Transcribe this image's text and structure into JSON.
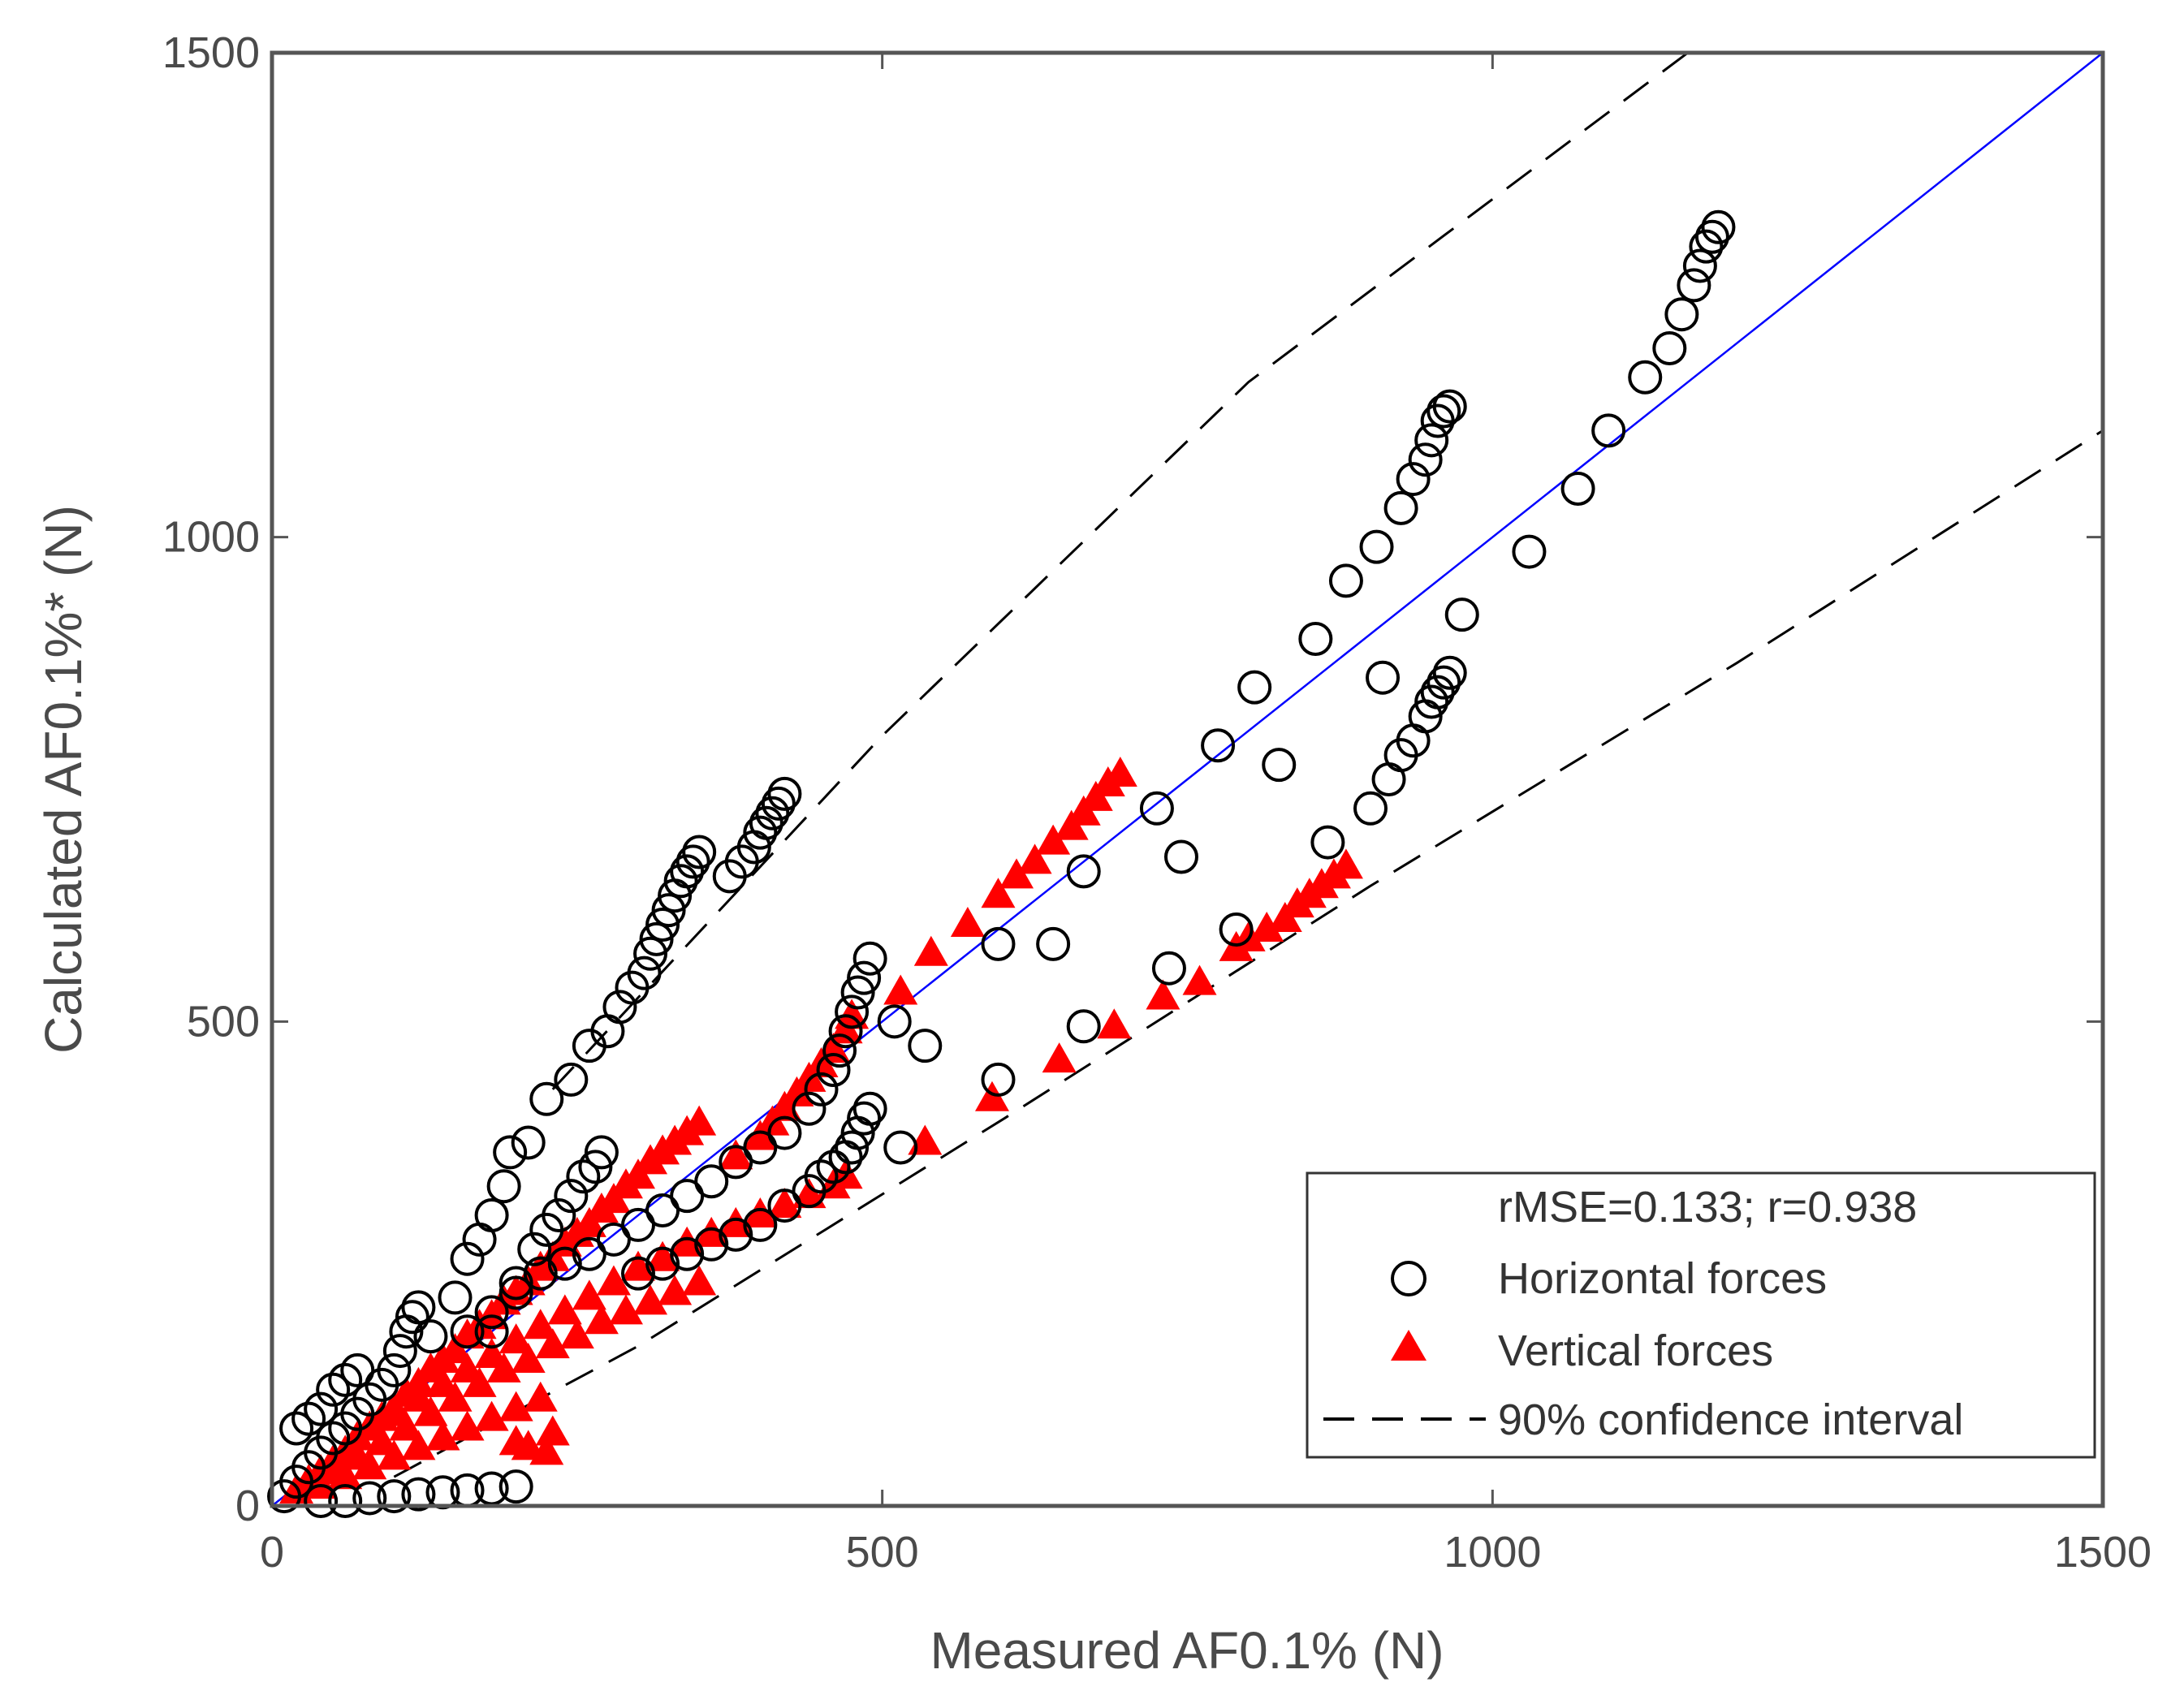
{
  "chart_data": {
    "type": "scatter",
    "xlabel": "Measured AF0.1% (N)",
    "ylabel": "Calculated AF0.1%* (N)",
    "xlim": [
      0,
      1500
    ],
    "ylim": [
      0,
      1500
    ],
    "x_ticks": [
      "0",
      "500",
      "1000",
      "1500"
    ],
    "y_ticks": [
      "0",
      "500",
      "1000",
      "1500"
    ],
    "grid": false,
    "legend_position": "bottom-right",
    "stats_text": "rMSE=0.133; r=0.938",
    "series": [
      {
        "name": "Horizontal forces",
        "marker": "open-circle",
        "color": "#000000",
        "points": [
          [
            10,
            10
          ],
          [
            20,
            25
          ],
          [
            30,
            40
          ],
          [
            40,
            55
          ],
          [
            50,
            70
          ],
          [
            60,
            80
          ],
          [
            70,
            95
          ],
          [
            80,
            110
          ],
          [
            90,
            125
          ],
          [
            100,
            140
          ],
          [
            105,
            160
          ],
          [
            110,
            180
          ],
          [
            115,
            195
          ],
          [
            120,
            205
          ],
          [
            20,
            80
          ],
          [
            30,
            90
          ],
          [
            40,
            100
          ],
          [
            50,
            120
          ],
          [
            60,
            130
          ],
          [
            70,
            140
          ],
          [
            130,
            175
          ],
          [
            150,
            215
          ],
          [
            160,
            255
          ],
          [
            170,
            275
          ],
          [
            180,
            300
          ],
          [
            190,
            330
          ],
          [
            195,
            365
          ],
          [
            210,
            375
          ],
          [
            225,
            420
          ],
          [
            245,
            440
          ],
          [
            260,
            475
          ],
          [
            275,
            490
          ],
          [
            285,
            515
          ],
          [
            295,
            535
          ],
          [
            305,
            550
          ],
          [
            310,
            570
          ],
          [
            315,
            585
          ],
          [
            320,
            600
          ],
          [
            325,
            615
          ],
          [
            330,
            630
          ],
          [
            335,
            645
          ],
          [
            340,
            655
          ],
          [
            345,
            665
          ],
          [
            350,
            675
          ],
          [
            375,
            650
          ],
          [
            385,
            665
          ],
          [
            395,
            680
          ],
          [
            400,
            695
          ],
          [
            405,
            705
          ],
          [
            410,
            715
          ],
          [
            415,
            725
          ],
          [
            420,
            735
          ],
          [
            180,
            180
          ],
          [
            200,
            230
          ],
          [
            215,
            265
          ],
          [
            225,
            285
          ],
          [
            235,
            300
          ],
          [
            245,
            320
          ],
          [
            255,
            340
          ],
          [
            265,
            350
          ],
          [
            270,
            365
          ],
          [
            40,
            5
          ],
          [
            60,
            5
          ],
          [
            80,
            8
          ],
          [
            100,
            10
          ],
          [
            120,
            12
          ],
          [
            140,
            14
          ],
          [
            160,
            16
          ],
          [
            180,
            18
          ],
          [
            200,
            20
          ],
          [
            160,
            180
          ],
          [
            180,
            200
          ],
          [
            200,
            220
          ],
          [
            220,
            240
          ],
          [
            240,
            250
          ],
          [
            260,
            260
          ],
          [
            280,
            275
          ],
          [
            300,
            290
          ],
          [
            320,
            305
          ],
          [
            340,
            320
          ],
          [
            360,
            335
          ],
          [
            380,
            355
          ],
          [
            400,
            370
          ],
          [
            420,
            385
          ],
          [
            440,
            410
          ],
          [
            450,
            430
          ],
          [
            460,
            450
          ],
          [
            465,
            470
          ],
          [
            470,
            490
          ],
          [
            475,
            510
          ],
          [
            480,
            530
          ],
          [
            485,
            545
          ],
          [
            490,
            565
          ],
          [
            300,
            240
          ],
          [
            320,
            250
          ],
          [
            340,
            260
          ],
          [
            360,
            270
          ],
          [
            380,
            280
          ],
          [
            400,
            290
          ],
          [
            420,
            310
          ],
          [
            440,
            325
          ],
          [
            450,
            340
          ],
          [
            460,
            350
          ],
          [
            470,
            360
          ],
          [
            475,
            370
          ],
          [
            480,
            385
          ],
          [
            485,
            400
          ],
          [
            490,
            410
          ],
          [
            510,
            500
          ],
          [
            515,
            370
          ],
          [
            535,
            475
          ],
          [
            595,
            440
          ],
          [
            595,
            580
          ],
          [
            640,
            580
          ],
          [
            665,
            655
          ],
          [
            665,
            495
          ],
          [
            725,
            720
          ],
          [
            735,
            555
          ],
          [
            745,
            670
          ],
          [
            775,
            785
          ],
          [
            790,
            595
          ],
          [
            805,
            845
          ],
          [
            825,
            765
          ],
          [
            855,
            895
          ],
          [
            865,
            685
          ],
          [
            880,
            955
          ],
          [
            900,
            720
          ],
          [
            905,
            990
          ],
          [
            910,
            855
          ],
          [
            915,
            750
          ],
          [
            925,
            1030
          ],
          [
            925,
            775
          ],
          [
            935,
            1060
          ],
          [
            935,
            790
          ],
          [
            945,
            1080
          ],
          [
            945,
            815
          ],
          [
            950,
            1100
          ],
          [
            950,
            830
          ],
          [
            955,
            1120
          ],
          [
            955,
            840
          ],
          [
            960,
            1130
          ],
          [
            960,
            850
          ],
          [
            965,
            1135
          ],
          [
            965,
            860
          ],
          [
            975,
            920
          ],
          [
            1030,
            985
          ],
          [
            1070,
            1050
          ],
          [
            1095,
            1110
          ],
          [
            1125,
            1165
          ],
          [
            1145,
            1195
          ],
          [
            1155,
            1230
          ],
          [
            1165,
            1260
          ],
          [
            1170,
            1280
          ],
          [
            1175,
            1300
          ],
          [
            1180,
            1310
          ],
          [
            1185,
            1320
          ]
        ]
      },
      {
        "name": "Vertical forces",
        "marker": "filled-triangle",
        "color": "#ff0000",
        "points": [
          [
            20,
            15
          ],
          [
            30,
            25
          ],
          [
            40,
            35
          ],
          [
            50,
            45
          ],
          [
            60,
            55
          ],
          [
            70,
            70
          ],
          [
            80,
            80
          ],
          [
            90,
            90
          ],
          [
            100,
            100
          ],
          [
            110,
            115
          ],
          [
            120,
            125
          ],
          [
            130,
            140
          ],
          [
            140,
            150
          ],
          [
            150,
            160
          ],
          [
            160,
            175
          ],
          [
            170,
            185
          ],
          [
            180,
            195
          ],
          [
            190,
            210
          ],
          [
            200,
            220
          ],
          [
            210,
            230
          ],
          [
            220,
            245
          ],
          [
            230,
            255
          ],
          [
            240,
            270
          ],
          [
            250,
            280
          ],
          [
            260,
            290
          ],
          [
            270,
            305
          ],
          [
            280,
            315
          ],
          [
            290,
            330
          ],
          [
            300,
            340
          ],
          [
            310,
            355
          ],
          [
            320,
            365
          ],
          [
            330,
            375
          ],
          [
            340,
            385
          ],
          [
            350,
            395
          ],
          [
            50,
            35
          ],
          [
            70,
            50
          ],
          [
            90,
            65
          ],
          [
            110,
            80
          ],
          [
            130,
            95
          ],
          [
            150,
            110
          ],
          [
            170,
            125
          ],
          [
            190,
            140
          ],
          [
            210,
            150
          ],
          [
            230,
            165
          ],
          [
            250,
            175
          ],
          [
            270,
            190
          ],
          [
            290,
            200
          ],
          [
            310,
            210
          ],
          [
            330,
            220
          ],
          [
            350,
            230
          ],
          [
            100,
            95
          ],
          [
            120,
            110
          ],
          [
            140,
            125
          ],
          [
            160,
            140
          ],
          [
            180,
            155
          ],
          [
            200,
            170
          ],
          [
            220,
            185
          ],
          [
            240,
            200
          ],
          [
            260,
            215
          ],
          [
            280,
            230
          ],
          [
            300,
            245
          ],
          [
            320,
            255
          ],
          [
            340,
            270
          ],
          [
            360,
            280
          ],
          [
            380,
            290
          ],
          [
            400,
            300
          ],
          [
            420,
            310
          ],
          [
            440,
            320
          ],
          [
            460,
            330
          ],
          [
            470,
            340
          ],
          [
            40,
            20
          ],
          [
            60,
            30
          ],
          [
            80,
            40
          ],
          [
            100,
            50
          ],
          [
            120,
            60
          ],
          [
            140,
            70
          ],
          [
            160,
            80
          ],
          [
            180,
            90
          ],
          [
            200,
            100
          ],
          [
            220,
            110
          ],
          [
            230,
            75
          ],
          [
            225,
            55
          ],
          [
            210,
            60
          ],
          [
            200,
            65
          ],
          [
            380,
            360
          ],
          [
            400,
            380
          ],
          [
            410,
            395
          ],
          [
            420,
            410
          ],
          [
            430,
            425
          ],
          [
            440,
            440
          ],
          [
            450,
            455
          ],
          [
            460,
            470
          ],
          [
            470,
            490
          ],
          [
            475,
            505
          ],
          [
            515,
            530
          ],
          [
            535,
            375
          ],
          [
            540,
            570
          ],
          [
            570,
            600
          ],
          [
            590,
            420
          ],
          [
            595,
            630
          ],
          [
            610,
            650
          ],
          [
            625,
            665
          ],
          [
            640,
            685
          ],
          [
            645,
            460
          ],
          [
            655,
            700
          ],
          [
            665,
            715
          ],
          [
            675,
            730
          ],
          [
            685,
            745
          ],
          [
            690,
            495
          ],
          [
            695,
            755
          ],
          [
            730,
            525
          ],
          [
            760,
            540
          ],
          [
            790,
            575
          ],
          [
            800,
            585
          ],
          [
            815,
            595
          ],
          [
            830,
            605
          ],
          [
            840,
            620
          ],
          [
            850,
            630
          ],
          [
            860,
            640
          ],
          [
            870,
            650
          ],
          [
            880,
            660
          ]
        ]
      },
      {
        "name": "",
        "type": "line",
        "color": "#0000ff",
        "points": [
          [
            0,
            0
          ],
          [
            1500,
            1500
          ]
        ]
      },
      {
        "name": "90% confidence interval",
        "type": "dashed-line",
        "color": "#000000",
        "points": [
          [
            230,
            430
          ],
          [
            500,
            795
          ],
          [
            800,
            1160
          ],
          [
            1160,
            1500
          ]
        ]
      },
      {
        "name": "",
        "type": "dashed-line",
        "color": "#000000",
        "points": [
          [
            100,
            30
          ],
          [
            300,
            165
          ],
          [
            600,
            400
          ],
          [
            900,
            640
          ],
          [
            1200,
            870
          ],
          [
            1500,
            1110
          ]
        ]
      }
    ]
  }
}
